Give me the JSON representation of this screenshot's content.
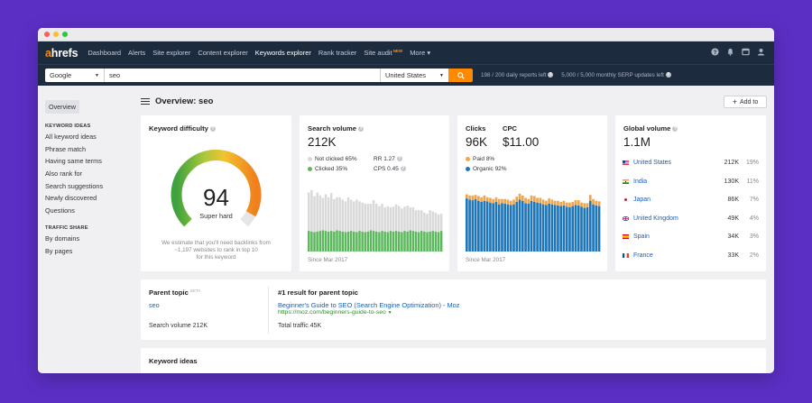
{
  "nav": {
    "logo_a": "a",
    "logo_rest": "hrefs",
    "items": [
      "Dashboard",
      "Alerts",
      "Site explorer",
      "Content explorer",
      "Keywords explorer",
      "Rank tracker",
      "Site audit"
    ],
    "new_badge": "NEW",
    "more": "More ▾",
    "icons": [
      "help-icon",
      "bell-icon",
      "window-icon",
      "user-icon"
    ]
  },
  "search": {
    "engine": "Google",
    "query": "seo",
    "country": "United States",
    "reports_left": "198 / 200 daily reports left",
    "serp_updates": "5,000 / 5,000 monthly SERP updates left"
  },
  "sidebar": {
    "overview": "Overview",
    "keyword_ideas_heading": "KEYWORD IDEAS",
    "keyword_ideas": [
      "All keyword ideas",
      "Phrase match",
      "Having same terms",
      "Also rank for",
      "Search suggestions",
      "Newly discovered",
      "Questions"
    ],
    "traffic_heading": "TRAFFIC SHARE",
    "traffic": [
      "By domains",
      "By pages"
    ]
  },
  "header": {
    "title": "Overview: seo",
    "add_to": "Add to"
  },
  "kd": {
    "label": "Keyword difficulty",
    "value": "94",
    "rating": "Super hard",
    "note_line1": "We estimate that you'll need backlinks from",
    "note_line2": "~1,197 websites to rank in top 10",
    "note_line3": "for this keyword",
    "score": 94,
    "score_max": 100
  },
  "sv": {
    "label": "Search volume",
    "value": "212K",
    "not_clicked": "Not clicked 65%",
    "clicked": "Clicked 35%",
    "rr": "RR 1.27",
    "cps": "CPS 0.45",
    "since": "Since Mar 2017"
  },
  "cpc": {
    "clicks_label": "Clicks",
    "cpc_label": "CPC",
    "clicks_value": "96K",
    "cpc_value": "$11.00",
    "paid": "Paid 8%",
    "organic": "Organic 92%",
    "since": "Since Mar 2017"
  },
  "gv": {
    "label": "Global volume",
    "value": "1.1M",
    "rows": [
      {
        "country": "United States",
        "volume": "212K",
        "pct": "19%",
        "flag": "us-flag-icon"
      },
      {
        "country": "India",
        "volume": "130K",
        "pct": "11%",
        "flag": "in-flag-icon"
      },
      {
        "country": "Japan",
        "volume": "86K",
        "pct": "7%",
        "flag": "jp-flag-icon"
      },
      {
        "country": "United Kingdom",
        "volume": "49K",
        "pct": "4%",
        "flag": "gb-flag-icon"
      },
      {
        "country": "Spain",
        "volume": "34K",
        "pct": "3%",
        "flag": "es-flag-icon"
      },
      {
        "country": "France",
        "volume": "33K",
        "pct": "2%",
        "flag": "fr-flag-icon"
      }
    ]
  },
  "parent": {
    "label": "Parent topic",
    "beta": "BETA",
    "topic": "seo",
    "search_volume": "Search volume 212K",
    "result_label": "#1 result for parent topic",
    "result_title": "Beginner's Guide to SEO (Search Engine Optimization) - Moz",
    "result_url": "https://moz.com/beginners-guide-to-seo",
    "total_traffic": "Total traffic 45K"
  },
  "ideas": {
    "label": "Keyword ideas"
  },
  "colors": {
    "accent": "#ff8a00",
    "nav_bg": "#1d2b3f",
    "clicked": "#5cb85c",
    "not_clicked": "#d9d9d9",
    "organic": "#1e76b8",
    "paid": "#f0a54a",
    "link": "#1a5eb8"
  },
  "chart_data": [
    {
      "type": "bar",
      "title": "Search volume",
      "series": [
        {
          "name": "Clicked",
          "values": [
            35,
            34,
            33,
            34,
            35,
            36,
            35,
            34,
            35,
            34,
            36,
            35,
            34,
            33,
            34,
            35,
            34,
            33,
            35,
            34,
            33,
            34,
            36,
            35,
            34,
            33,
            35,
            34,
            33,
            35,
            34,
            35,
            34,
            33,
            35,
            34,
            36,
            35,
            34,
            33,
            35,
            34,
            33,
            34,
            35,
            34,
            33,
            35
          ]
        },
        {
          "name": "Not clicked",
          "values": [
            65,
            70,
            61,
            66,
            60,
            55,
            62,
            58,
            64,
            55,
            56,
            57,
            54,
            52,
            58,
            53,
            51,
            55,
            50,
            49,
            48,
            47,
            45,
            52,
            47,
            44,
            46,
            41,
            44,
            40,
            42,
            45,
            43,
            40,
            41,
            44,
            39,
            40,
            36,
            37,
            35,
            32,
            31,
            36,
            33,
            32,
            30,
            29
          ]
        }
      ],
      "ylim": [
        0,
        110
      ]
    },
    {
      "type": "bar",
      "title": "Clicks",
      "series": [
        {
          "name": "Organic",
          "values": [
            90,
            88,
            87,
            89,
            86,
            84,
            86,
            85,
            83,
            82,
            84,
            80,
            82,
            81,
            80,
            79,
            80,
            84,
            88,
            86,
            82,
            81,
            86,
            84,
            83,
            82,
            80,
            79,
            81,
            80,
            79,
            78,
            77,
            78,
            76,
            75,
            77,
            79,
            78,
            76,
            74,
            75,
            86,
            80,
            78,
            77
          ]
        },
        {
          "name": "Paid",
          "values": [
            7,
            7,
            8,
            7,
            8,
            8,
            9,
            7,
            8,
            7,
            8,
            9,
            7,
            8,
            8,
            7,
            8,
            9,
            10,
            9,
            9,
            8,
            9,
            10,
            8,
            9,
            8,
            7,
            9,
            8,
            7,
            8,
            7,
            8,
            7,
            8,
            7,
            8,
            9,
            7,
            8,
            7,
            10,
            9,
            8,
            8
          ]
        }
      ],
      "ylim": [
        0,
        110
      ]
    }
  ]
}
